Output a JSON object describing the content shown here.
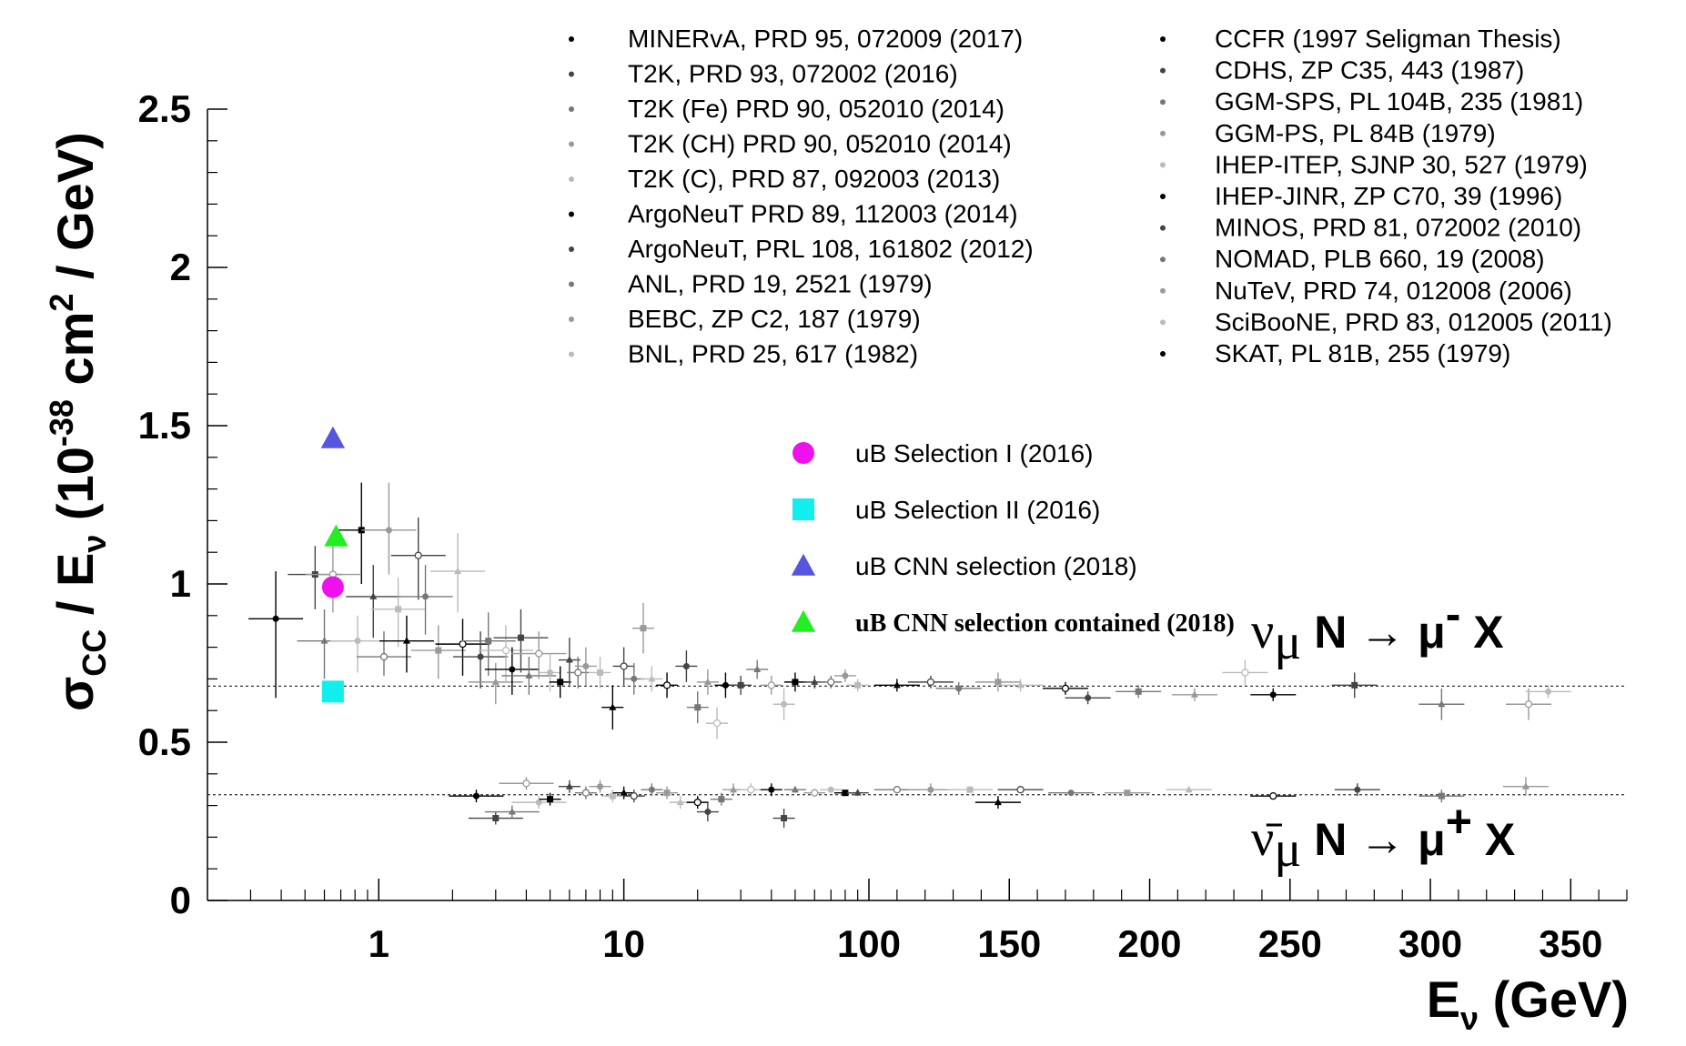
{
  "chart_data": {
    "type": "scatter",
    "title": "",
    "xlabel": {
      "main": "E",
      "sub": "ν",
      "unit": " (GeV)"
    },
    "ylabel": {
      "sigma": "σ",
      "sigma_sub": "CC",
      "slash": " / E",
      "e_sub": "ν",
      "open": " (10",
      "exp": "-38",
      "mid": " cm",
      "exp2": "2",
      "end": " / GeV)"
    },
    "x_scale": "log 0.2–100 GeV, linear 100–370 GeV",
    "x_ticks": [
      "1",
      "10",
      "100",
      "150",
      "200",
      "250",
      "300",
      "350"
    ],
    "y_ticks": [
      "0",
      "0.5",
      "1",
      "1.5",
      "2",
      "2.5"
    ],
    "ylim": [
      0,
      2.5
    ],
    "reference_lines": [
      {
        "name": "nu",
        "y": 0.677,
        "label_main": "ν",
        "label_sub": "μ",
        "label_rest": " N → μ",
        "label_sup": "-",
        "label_end": " X"
      },
      {
        "name": "antinu",
        "y": 0.334,
        "label_main": "ν̄",
        "label_sub": "μ",
        "label_rest": " N → μ",
        "label_sup": "+",
        "label_end": " X"
      }
    ],
    "legend_left": [
      "MINERvA, PRD 95, 072009 (2017)",
      "T2K, PRD 93, 072002  (2016)",
      "T2K (Fe) PRD 90, 052010 (2014)",
      "T2K (CH) PRD 90, 052010 (2014)",
      "T2K (C), PRD 87, 092003 (2013)",
      "ArgoNeuT PRD 89, 112003 (2014)",
      "ArgoNeuT, PRL 108, 161802 (2012)",
      "ANL, PRD 19, 2521 (1979)",
      "BEBC, ZP C2, 187 (1979)",
      "BNL, PRD 25, 617 (1982)"
    ],
    "legend_right": [
      "CCFR (1997 Seligman Thesis)",
      "CDHS, ZP C35, 443 (1987)",
      "GGM-SPS, PL 104B, 235 (1981)",
      "GGM-PS, PL 84B (1979)",
      "IHEP-ITEP, SJNP 30, 527 (1979)",
      "IHEP-JINR, ZP C70, 39 (1996)",
      "MINOS, PRD 81, 072002 (2010)",
      "NOMAD, PLB 660, 19 (2008)",
      "NuTeV, PRD 74, 012008 (2006)",
      "SciBooNE, PRD 83, 012005 (2011)",
      "SKAT, PL 81B, 255 (1979)"
    ],
    "ub_series": [
      {
        "name": "uB Selection I (2016)",
        "x": 0.65,
        "y": 0.99,
        "marker": "circle",
        "color": "#ee11ee"
      },
      {
        "name": "uB Selection II (2016)",
        "x": 0.65,
        "y": 0.66,
        "marker": "square",
        "color": "#11eeee"
      },
      {
        "name": "uB CNN selection (2018)",
        "x": 0.65,
        "y": 1.46,
        "marker": "triangle",
        "color": "#5555dd"
      },
      {
        "name": "uB CNN selection contained (2018)",
        "x": 0.67,
        "y": 1.15,
        "marker": "triangle",
        "color": "#22ee22"
      }
    ],
    "nu_points": [
      [
        0.38,
        0.89,
        0.15,
        0.25
      ],
      [
        0.55,
        1.03,
        0.09,
        0.11
      ],
      [
        0.6,
        0.82,
        0.1,
        0.12
      ],
      [
        0.65,
        1.03,
        0.1,
        0.12
      ],
      [
        0.82,
        0.82,
        0.08,
        0.1
      ],
      [
        0.85,
        1.17,
        0.15,
        0.17
      ],
      [
        0.95,
        0.96,
        0.1,
        0.13
      ],
      [
        1.05,
        0.77,
        0.08,
        0.06
      ],
      [
        1.1,
        1.17,
        0.15,
        0.14
      ],
      [
        1.2,
        0.92,
        0.1,
        0.12
      ],
      [
        1.3,
        0.82,
        0.08,
        0.1
      ],
      [
        1.45,
        1.09,
        0.12,
        0.14
      ],
      [
        1.55,
        0.96,
        0.1,
        0.12
      ],
      [
        1.75,
        0.79,
        0.08,
        0.09
      ],
      [
        2.1,
        1.04,
        0.12,
        0.13
      ],
      [
        2.2,
        0.81,
        0.08,
        0.1
      ],
      [
        2.6,
        0.77,
        0.08,
        0.1
      ],
      [
        2.8,
        0.82,
        0.09,
        0.11
      ],
      [
        3.0,
        0.69,
        0.06,
        0.07
      ],
      [
        3.3,
        0.79,
        0.08,
        0.1
      ],
      [
        3.5,
        0.73,
        0.07,
        0.08
      ],
      [
        3.8,
        0.83,
        0.09,
        0.11
      ],
      [
        4.1,
        0.71,
        0.06,
        0.06
      ],
      [
        4.5,
        0.78,
        0.07,
        0.08
      ],
      [
        5.0,
        0.72,
        0.06,
        0.06
      ],
      [
        5.5,
        0.69,
        0.05,
        0.05
      ],
      [
        6.0,
        0.76,
        0.07,
        0.08
      ],
      [
        6.5,
        0.72,
        0.05,
        0.05
      ],
      [
        7.0,
        0.74,
        0.06,
        0.06
      ],
      [
        8.0,
        0.72,
        0.05,
        0.05
      ],
      [
        9.0,
        0.61,
        0.07,
        0.07
      ],
      [
        10.0,
        0.74,
        0.06,
        0.06
      ],
      [
        11.0,
        0.7,
        0.05,
        0.05
      ],
      [
        12.0,
        0.86,
        0.08,
        0.08
      ],
      [
        13.0,
        0.7,
        0.04,
        0.04
      ],
      [
        15.0,
        0.68,
        0.04,
        0.04
      ],
      [
        18.0,
        0.74,
        0.05,
        0.05
      ],
      [
        20.0,
        0.61,
        0.05,
        0.05
      ],
      [
        22.0,
        0.69,
        0.04,
        0.04
      ],
      [
        24.0,
        0.56,
        0.05,
        0.05
      ],
      [
        26.0,
        0.68,
        0.04,
        0.04
      ],
      [
        30.0,
        0.68,
        0.03,
        0.03
      ],
      [
        35.0,
        0.73,
        0.03,
        0.03
      ],
      [
        40.0,
        0.68,
        0.03,
        0.03
      ],
      [
        45.0,
        0.62,
        0.05,
        0.05
      ],
      [
        50.0,
        0.69,
        0.03,
        0.03
      ],
      [
        60.0,
        0.69,
        0.02,
        0.02
      ],
      [
        70.0,
        0.69,
        0.02,
        0.02
      ],
      [
        80.0,
        0.71,
        0.02,
        0.02
      ],
      [
        90.0,
        0.68,
        0.02,
        0.02
      ],
      [
        110,
        0.68,
        0.02,
        0.02
      ],
      [
        122,
        0.69,
        0.02,
        0.02
      ],
      [
        132,
        0.67,
        0.02,
        0.02
      ],
      [
        146,
        0.69,
        0.03,
        0.03
      ],
      [
        154,
        0.68,
        0.02,
        0.02
      ],
      [
        170,
        0.67,
        0.02,
        0.02
      ],
      [
        178,
        0.64,
        0.02,
        0.02
      ],
      [
        196,
        0.66,
        0.02,
        0.02
      ],
      [
        216,
        0.65,
        0.02,
        0.02
      ],
      [
        234,
        0.72,
        0.04,
        0.04
      ],
      [
        244,
        0.65,
        0.02,
        0.02
      ],
      [
        273,
        0.68,
        0.04,
        0.04
      ],
      [
        304,
        0.62,
        0.05,
        0.05
      ],
      [
        335,
        0.62,
        0.05,
        0.05
      ],
      [
        342,
        0.66,
        0.02,
        0.02
      ]
    ],
    "antinu_points": [
      [
        2.5,
        0.33,
        0.02,
        0.02
      ],
      [
        3.0,
        0.26,
        0.02,
        0.02
      ],
      [
        3.5,
        0.28,
        0.02,
        0.02
      ],
      [
        4.0,
        0.37,
        0.02,
        0.02
      ],
      [
        4.5,
        0.31,
        0.02,
        0.02
      ],
      [
        5.0,
        0.32,
        0.02,
        0.02
      ],
      [
        6.0,
        0.36,
        0.02,
        0.02
      ],
      [
        7.0,
        0.34,
        0.02,
        0.02
      ],
      [
        8.0,
        0.36,
        0.02,
        0.02
      ],
      [
        9.0,
        0.33,
        0.02,
        0.02
      ],
      [
        10.0,
        0.34,
        0.02,
        0.02
      ],
      [
        11.0,
        0.33,
        0.02,
        0.02
      ],
      [
        13.0,
        0.35,
        0.02,
        0.02
      ],
      [
        15.0,
        0.34,
        0.02,
        0.02
      ],
      [
        17.0,
        0.31,
        0.02,
        0.02
      ],
      [
        20.0,
        0.31,
        0.02,
        0.02
      ],
      [
        22.0,
        0.28,
        0.03,
        0.03
      ],
      [
        25.0,
        0.32,
        0.02,
        0.02
      ],
      [
        28.0,
        0.35,
        0.02,
        0.02
      ],
      [
        33.0,
        0.35,
        0.02,
        0.02
      ],
      [
        40.0,
        0.35,
        0.02,
        0.02
      ],
      [
        45.0,
        0.26,
        0.03,
        0.03
      ],
      [
        50.0,
        0.35,
        0.01,
        0.01
      ],
      [
        60.0,
        0.34,
        0.01,
        0.01
      ],
      [
        70.0,
        0.35,
        0.01,
        0.01
      ],
      [
        80.0,
        0.34,
        0.01,
        0.01
      ],
      [
        90.0,
        0.34,
        0.01,
        0.01
      ],
      [
        110,
        0.35,
        0.01,
        0.01
      ],
      [
        122,
        0.35,
        0.02,
        0.02
      ],
      [
        136,
        0.35,
        0.01,
        0.01
      ],
      [
        146,
        0.31,
        0.02,
        0.02
      ],
      [
        154,
        0.35,
        0.01,
        0.01
      ],
      [
        172,
        0.34,
        0.01,
        0.01
      ],
      [
        192,
        0.34,
        0.01,
        0.01
      ],
      [
        214,
        0.35,
        0.01,
        0.01
      ],
      [
        244,
        0.33,
        0.01,
        0.01
      ],
      [
        274,
        0.35,
        0.02,
        0.02
      ],
      [
        304,
        0.33,
        0.02,
        0.02
      ],
      [
        334,
        0.36,
        0.03,
        0.03
      ]
    ]
  }
}
